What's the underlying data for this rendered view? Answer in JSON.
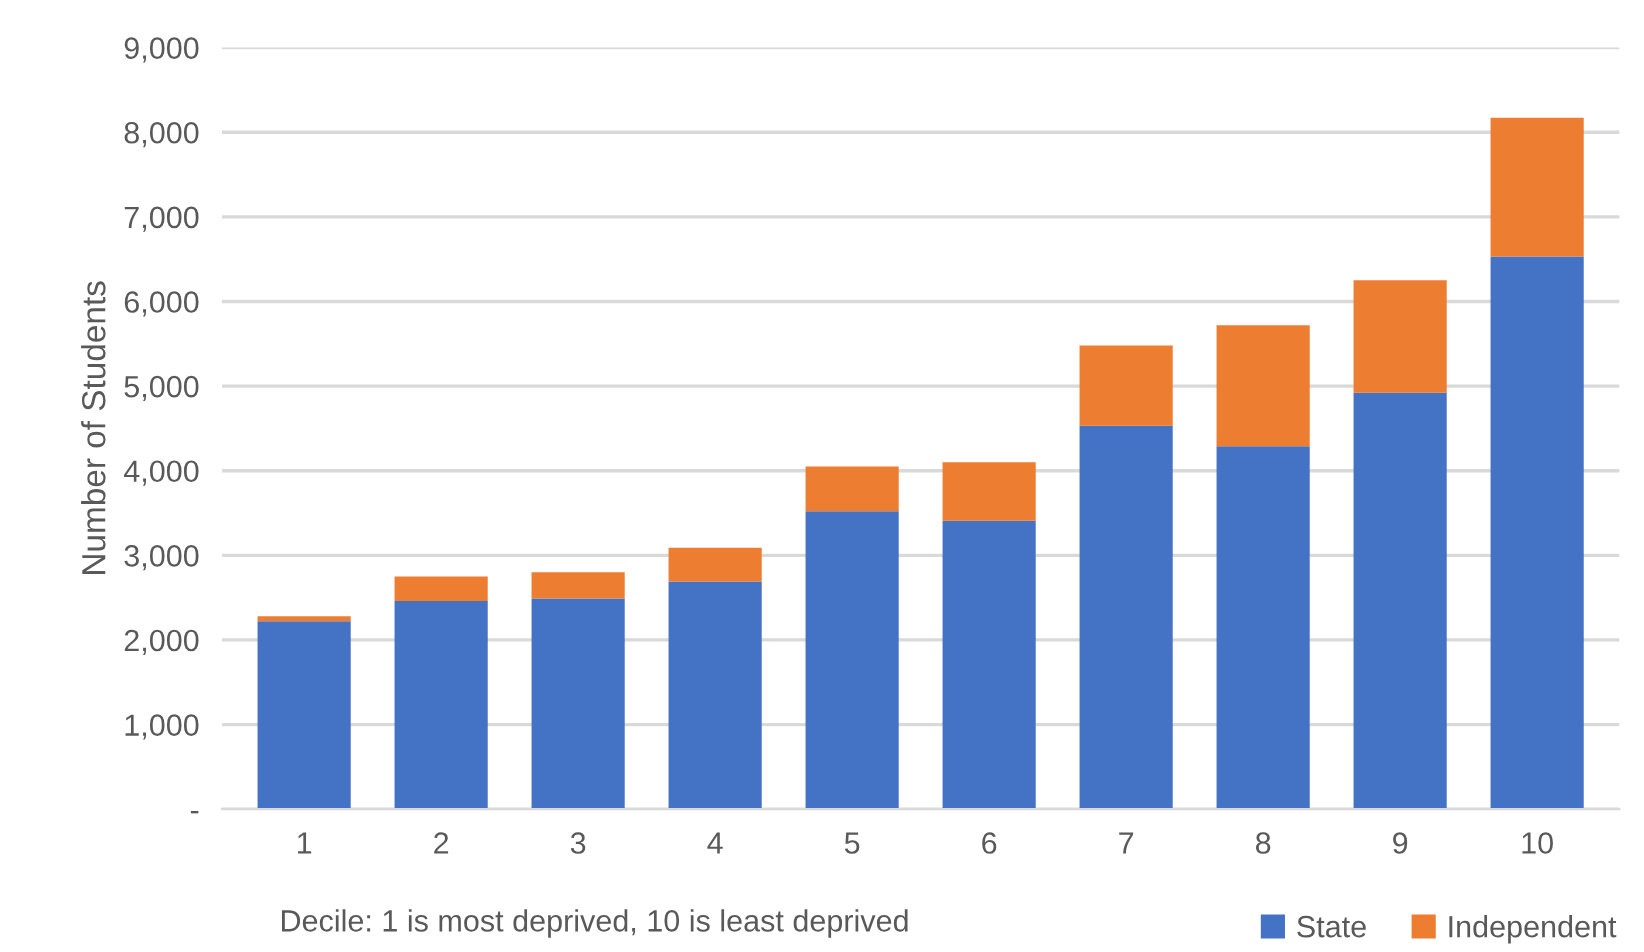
{
  "chart_data": {
    "type": "bar",
    "stacked": true,
    "xlabel": "Decile: 1 is most deprived, 10 is least deprived",
    "ylabel": "Number of Students",
    "categories": [
      "1",
      "2",
      "3",
      "4",
      "5",
      "6",
      "7",
      "8",
      "9",
      "10"
    ],
    "series": [
      {
        "name": "State",
        "color": "#4472c4",
        "values": [
          2220,
          2460,
          2490,
          2690,
          3520,
          3410,
          4530,
          4290,
          4920,
          6530
        ]
      },
      {
        "name": "Independent",
        "color": "#ed7d31",
        "values": [
          60,
          290,
          310,
          400,
          530,
          690,
          950,
          1430,
          1330,
          1640
        ]
      }
    ],
    "ylim": [
      0,
      9000
    ],
    "yticks": [
      {
        "value": 0,
        "label": "-"
      },
      {
        "value": 1000,
        "label": "1,000"
      },
      {
        "value": 2000,
        "label": "2,000"
      },
      {
        "value": 3000,
        "label": "3,000"
      },
      {
        "value": 4000,
        "label": "4,000"
      },
      {
        "value": 5000,
        "label": "5,000"
      },
      {
        "value": 6000,
        "label": "6,000"
      },
      {
        "value": 7000,
        "label": "7,000"
      },
      {
        "value": 8000,
        "label": "8,000"
      },
      {
        "value": 9000,
        "label": "9,000"
      }
    ],
    "grid": "y",
    "legend": "bottom right"
  }
}
